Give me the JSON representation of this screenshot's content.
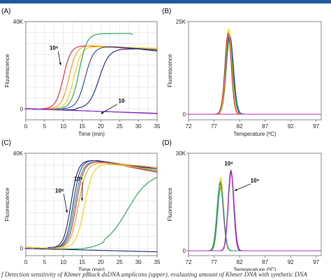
{
  "caption": "f Detection sensitivity of Khmer pBlack dsDNA amplicons (upper), evaluating amount of Khmer DNA with synthetic DNA",
  "colors": {
    "red": "#e8202a",
    "orange": "#f7941d",
    "yellow": "#f5d000",
    "green": "#1aa54b",
    "blue": "#1f3fa0",
    "darkblue": "#151c70",
    "teal": "#1b8f8f",
    "magenta": "#c218c8",
    "purple": "#6a2cc8",
    "pink": "#e86ab0"
  },
  "chart_data": [
    {
      "panel": "(A)",
      "type": "line",
      "xlabel": "Time (min)",
      "ylabel": "Fluorescence",
      "xlim": [
        0,
        35
      ],
      "ylim": [
        -5000,
        40000
      ],
      "x_ticks": [
        0,
        5,
        10,
        15,
        20,
        25,
        30,
        35
      ],
      "y_ticks": [
        {
          "value": 40000,
          "label": "40K"
        },
        {
          "value": 0,
          "label": "0"
        }
      ],
      "grid": true,
      "annotations": [
        {
          "text": "10⁶",
          "x": 7.5,
          "y": 27000,
          "arrow_to": [
            9.3,
            20000
          ]
        },
        {
          "text": "10",
          "x": 25.5,
          "y": 2800,
          "arrow_to": [
            20,
            -2200
          ]
        }
      ],
      "series": [
        {
          "color": "red",
          "start": 2,
          "t50": 10.0,
          "k": 1.0,
          "plateau": 29000,
          "x_end": 35,
          "peak_at": 15,
          "end_value": 27000
        },
        {
          "color": "orange",
          "start": 2,
          "t50": 11.5,
          "k": 1.0,
          "plateau": 29000,
          "x_end": 35,
          "peak_at": 17,
          "end_value": 27500
        },
        {
          "color": "yellow",
          "start": 2,
          "t50": 12.8,
          "k": 1.0,
          "plateau": 28500,
          "x_end": 35,
          "peak_at": 19,
          "end_value": 27800
        },
        {
          "color": "green",
          "start": 2,
          "t50": 14.2,
          "k": 0.95,
          "plateau": 34500,
          "x_end": 28.5,
          "peak_at": 28,
          "end_value": 26500
        },
        {
          "color": "blue",
          "start": 2,
          "t50": 15.8,
          "k": 0.9,
          "plateau": 28500,
          "x_end": 35,
          "peak_at": 23,
          "end_value": 27000
        },
        {
          "color": "darkblue",
          "start": 1,
          "t50": 19.5,
          "k": 0.75,
          "plateau": 27500,
          "x_end": 35,
          "peak_at": 30,
          "end_value": 26500
        },
        {
          "color": "magenta",
          "start": 200,
          "end_value": -2200,
          "x_end": 35,
          "flat": true
        },
        {
          "color": "purple",
          "start": 0,
          "end_value": -2000,
          "x_end": 35,
          "flat": true
        }
      ]
    },
    {
      "panel": "(B)",
      "type": "line",
      "xlabel": "Temperature (ºC)",
      "ylabel": "Fluorescence",
      "xlim": [
        72,
        98
      ],
      "ylim": [
        -1500,
        25000
      ],
      "x_ticks": [
        72,
        77,
        82,
        87,
        92,
        97
      ],
      "y_ticks": [
        {
          "value": 25000,
          "label": "25K"
        },
        {
          "value": 0,
          "label": "0"
        }
      ],
      "grid": false,
      "series": [
        {
          "color": "darkblue",
          "peak_x": 80.0,
          "peak_y": 21500,
          "width": 0.75,
          "base": 0
        },
        {
          "color": "blue",
          "peak_x": 80.1,
          "peak_y": 21000,
          "width": 0.7,
          "base": 0
        },
        {
          "color": "green",
          "peak_x": 79.9,
          "peak_y": 20500,
          "width": 0.72,
          "base": 0
        },
        {
          "color": "teal",
          "peak_x": 80.0,
          "peak_y": 20000,
          "width": 0.7,
          "base": 0
        },
        {
          "color": "orange",
          "peak_x": 79.8,
          "peak_y": 22000,
          "width": 0.65,
          "base": 0
        },
        {
          "color": "yellow",
          "peak_x": 79.85,
          "peak_y": 23000,
          "width": 0.6,
          "base": 0
        },
        {
          "color": "red",
          "peak_x": 79.75,
          "peak_y": 21800,
          "width": 0.62,
          "base": 0
        },
        {
          "color": "magenta",
          "peak_x": 80,
          "peak_y": 0,
          "width": 1,
          "base": 0
        }
      ]
    },
    {
      "panel": "(C)",
      "type": "line",
      "xlabel": "Time (min)",
      "ylabel": "Fluorescence",
      "xlim": [
        0,
        35
      ],
      "ylim": [
        -3000,
        40000
      ],
      "x_ticks": [
        0,
        5,
        10,
        15,
        20,
        25,
        30,
        35
      ],
      "y_ticks": [
        {
          "value": 40000,
          "label": "40K"
        },
        {
          "value": 0,
          "label": "0"
        }
      ],
      "grid": true,
      "annotations": [
        {
          "text": "10⁵",
          "x": 14.0,
          "y": 28500,
          "arrow_to": [
            15.0,
            20000
          ]
        },
        {
          "text": "10⁶",
          "x": 9.0,
          "y": 23500,
          "arrow_to": [
            11.0,
            15000
          ]
        }
      ],
      "series": [
        {
          "color": "darkblue",
          "start": 500,
          "t50": 12.0,
          "k": 1.05,
          "plateau": 37000,
          "x_end": 35,
          "peak_at": 18,
          "end_value": 33500
        },
        {
          "color": "blue",
          "start": 500,
          "t50": 12.6,
          "k": 1.05,
          "plateau": 37000,
          "x_end": 35,
          "peak_at": 19,
          "end_value": 33000
        },
        {
          "color": "teal",
          "start": 500,
          "t50": 13.0,
          "k": 1.0,
          "plateau": 36500,
          "x_end": 35,
          "peak_at": 19,
          "end_value": 32500
        },
        {
          "color": "red",
          "start": 500,
          "t50": 13.4,
          "k": 1.0,
          "plateau": 36500,
          "x_end": 35,
          "peak_at": 20,
          "end_value": 32000
        },
        {
          "color": "orange",
          "start": 500,
          "t50": 14.0,
          "k": 0.95,
          "plateau": 36000,
          "x_end": 35,
          "peak_at": 21,
          "end_value": 34000
        },
        {
          "color": "yellow",
          "start": 500,
          "t50": 15.6,
          "k": 0.9,
          "plateau": 35500,
          "x_end": 35,
          "peak_at": 22,
          "end_value": 33000
        },
        {
          "color": "green",
          "start": 0,
          "t50": 27.0,
          "k": 0.33,
          "plateau": 32000,
          "x_end": 35,
          "peak_at": 35,
          "end_value": 31500
        },
        {
          "color": "darkblue",
          "start": 0,
          "end_value": -1400,
          "x_end": 35,
          "flat": true
        }
      ]
    },
    {
      "panel": "(D)",
      "type": "line",
      "xlabel": "Temperature (ºC)",
      "ylabel": "Fluorescence",
      "xlim": [
        72,
        98
      ],
      "ylim": [
        -1500,
        30000
      ],
      "x_ticks": [
        72,
        77,
        82,
        87,
        92,
        97
      ],
      "y_ticks": [
        {
          "value": 30000,
          "label": "30K"
        },
        {
          "value": 0,
          "label": "0"
        }
      ],
      "grid": false,
      "annotations": [
        {
          "text": "10⁶",
          "x": 79.9,
          "y": 26200,
          "arrow_to": null
        },
        {
          "text": "10⁵",
          "x": 85.0,
          "y": 21000,
          "arrow_to": [
            81.0,
            18500
          ]
        }
      ],
      "series": [
        {
          "color": "red",
          "peak_x": 78.2,
          "peak_y": 20500,
          "width": 0.6,
          "base": 0
        },
        {
          "color": "orange",
          "peak_x": 78.25,
          "peak_y": 21500,
          "width": 0.58,
          "base": 0
        },
        {
          "color": "yellow",
          "peak_x": 78.3,
          "peak_y": 22500,
          "width": 0.55,
          "base": 0
        },
        {
          "color": "green",
          "peak_x": 78.2,
          "peak_y": 21000,
          "width": 0.62,
          "base": 0
        },
        {
          "color": "teal",
          "peak_x": 78.3,
          "peak_y": 19500,
          "width": 0.6,
          "base": 0
        },
        {
          "color": "blue",
          "peak_x": 80.3,
          "peak_y": 24500,
          "width": 0.55,
          "base": 0
        },
        {
          "color": "purple",
          "peak_x": 80.35,
          "peak_y": 24000,
          "width": 0.57,
          "base": 0
        },
        {
          "color": "magenta",
          "peak_x": 80.3,
          "peak_y": 24800,
          "width": 0.53,
          "base": 0
        }
      ]
    }
  ]
}
